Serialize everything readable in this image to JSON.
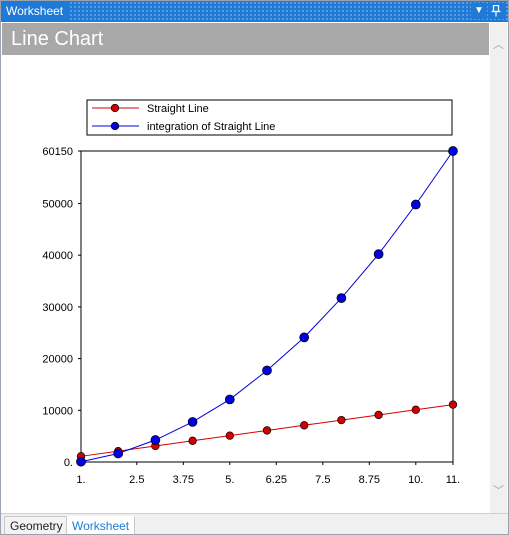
{
  "window": {
    "title": "Worksheet"
  },
  "titlebar": {
    "dropdown_glyph": "▼",
    "pin_glyph": "📌"
  },
  "header": {
    "title": "Line Chart"
  },
  "scrollbar": {
    "up_glyph": "︿",
    "down_glyph": "﹀"
  },
  "tabs": [
    {
      "label": "Geometry",
      "active": false
    },
    {
      "label": "Worksheet",
      "active": true
    }
  ],
  "chart_data": {
    "type": "line",
    "title": "",
    "xlabel": "",
    "ylabel": "",
    "xlim": [
      1,
      11
    ],
    "ylim": [
      0,
      60150
    ],
    "x_tick_labels": [
      "1.",
      "2.5",
      "3.75",
      "5.",
      "6.25",
      "7.5",
      "8.75",
      "10.",
      "11."
    ],
    "x_tick_values": [
      1,
      2.5,
      3.75,
      5,
      6.25,
      7.5,
      8.75,
      10,
      11
    ],
    "y_tick_labels": [
      "0.",
      "10000",
      "20000",
      "30000",
      "40000",
      "50000",
      "60150"
    ],
    "y_tick_values": [
      0,
      10000,
      20000,
      30000,
      40000,
      50000,
      60150
    ],
    "legend_position": "top",
    "grid": false,
    "x": [
      1,
      2,
      3,
      4,
      5,
      6,
      7,
      8,
      9,
      10,
      11
    ],
    "series": [
      {
        "name": "Straight Line",
        "color": "#d40000",
        "values": [
          1100,
          2100,
          3100,
          4100,
          5100,
          6100,
          7100,
          8100,
          9100,
          10100,
          11100
        ]
      },
      {
        "name": "integration of Straight Line",
        "color": "#0000e0",
        "values": [
          50,
          1650,
          4250,
          7750,
          12100,
          17700,
          24100,
          31700,
          40200,
          49800,
          60150
        ]
      }
    ]
  }
}
